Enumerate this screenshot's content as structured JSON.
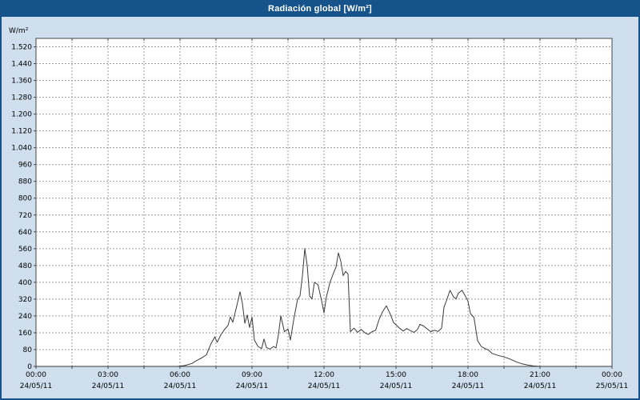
{
  "window": {
    "title": "Radiación global [W/m²]"
  },
  "colors": {
    "titlebar_bg": "#15538a",
    "window_bg": "#cfdfee",
    "plot_bg": "#ffffff",
    "plot_border": "#444444",
    "grid_color": "#9b9b9b",
    "line_color": "#3a3a3a",
    "text_color": "#000000"
  },
  "chart_data": {
    "type": "line",
    "title": "Radiación global [W/m²]",
    "ylabel": "W/m²",
    "xlabel": "",
    "grid": true,
    "legend": "none",
    "ylim": [
      0,
      1560
    ],
    "y_tick_step": 80,
    "y_tick_labels": [
      "0",
      "80",
      "160",
      "240",
      "320",
      "400",
      "480",
      "560",
      "640",
      "720",
      "800",
      "880",
      "960",
      "1.040",
      "1.120",
      "1.200",
      "1.280",
      "1.360",
      "1.440",
      "1.520"
    ],
    "x_hours": [
      0,
      24
    ],
    "x_grid_step_hours": 1.5,
    "x_tick_hours": [
      0,
      3,
      6,
      9,
      12,
      15,
      18,
      21,
      24
    ],
    "x_tick_times": [
      "00:00",
      "03:00",
      "06:00",
      "09:00",
      "12:00",
      "15:00",
      "18:00",
      "21:00",
      "00:00"
    ],
    "x_tick_dates": [
      "24/05/11",
      "24/05/11",
      "24/05/11",
      "24/05/11",
      "24/05/11",
      "24/05/11",
      "24/05/11",
      "24/05/11",
      "25/05/11"
    ],
    "series": [
      {
        "name": "Radiación global",
        "points": [
          [
            0,
            0
          ],
          [
            5.9,
            0
          ],
          [
            6.2,
            4
          ],
          [
            6.5,
            14
          ],
          [
            6.7,
            28
          ],
          [
            6.9,
            40
          ],
          [
            7.1,
            55
          ],
          [
            7.3,
            110
          ],
          [
            7.45,
            140
          ],
          [
            7.55,
            115
          ],
          [
            7.7,
            150
          ],
          [
            7.85,
            175
          ],
          [
            8.0,
            195
          ],
          [
            8.1,
            235
          ],
          [
            8.2,
            210
          ],
          [
            8.35,
            280
          ],
          [
            8.5,
            355
          ],
          [
            8.6,
            300
          ],
          [
            8.7,
            205
          ],
          [
            8.8,
            245
          ],
          [
            8.9,
            185
          ],
          [
            9.0,
            235
          ],
          [
            9.1,
            125
          ],
          [
            9.25,
            95
          ],
          [
            9.4,
            85
          ],
          [
            9.5,
            130
          ],
          [
            9.6,
            90
          ],
          [
            9.75,
            82
          ],
          [
            9.9,
            95
          ],
          [
            10.0,
            88
          ],
          [
            10.1,
            150
          ],
          [
            10.2,
            240
          ],
          [
            10.35,
            165
          ],
          [
            10.5,
            178
          ],
          [
            10.6,
            125
          ],
          [
            10.75,
            230
          ],
          [
            10.9,
            320
          ],
          [
            11.0,
            335
          ],
          [
            11.1,
            430
          ],
          [
            11.2,
            560
          ],
          [
            11.3,
            480
          ],
          [
            11.4,
            335
          ],
          [
            11.5,
            322
          ],
          [
            11.6,
            400
          ],
          [
            11.75,
            388
          ],
          [
            11.9,
            312
          ],
          [
            12.0,
            255
          ],
          [
            12.1,
            330
          ],
          [
            12.25,
            400
          ],
          [
            12.4,
            445
          ],
          [
            12.5,
            472
          ],
          [
            12.6,
            540
          ],
          [
            12.7,
            500
          ],
          [
            12.8,
            432
          ],
          [
            12.9,
            452
          ],
          [
            13.0,
            440
          ],
          [
            13.1,
            165
          ],
          [
            13.25,
            182
          ],
          [
            13.4,
            162
          ],
          [
            13.55,
            176
          ],
          [
            13.7,
            160
          ],
          [
            13.85,
            152
          ],
          [
            14.0,
            165
          ],
          [
            14.15,
            172
          ],
          [
            14.3,
            225
          ],
          [
            14.45,
            262
          ],
          [
            14.6,
            288
          ],
          [
            14.75,
            252
          ],
          [
            14.9,
            208
          ],
          [
            15.0,
            198
          ],
          [
            15.15,
            182
          ],
          [
            15.3,
            168
          ],
          [
            15.45,
            180
          ],
          [
            15.6,
            170
          ],
          [
            15.75,
            162
          ],
          [
            15.9,
            176
          ],
          [
            16.0,
            200
          ],
          [
            16.15,
            192
          ],
          [
            16.3,
            178
          ],
          [
            16.45,
            165
          ],
          [
            16.6,
            172
          ],
          [
            16.75,
            166
          ],
          [
            16.9,
            182
          ],
          [
            17.0,
            282
          ],
          [
            17.1,
            312
          ],
          [
            17.25,
            362
          ],
          [
            17.4,
            330
          ],
          [
            17.5,
            322
          ],
          [
            17.6,
            348
          ],
          [
            17.75,
            362
          ],
          [
            17.9,
            332
          ],
          [
            18.0,
            310
          ],
          [
            18.1,
            252
          ],
          [
            18.25,
            232
          ],
          [
            18.4,
            122
          ],
          [
            18.55,
            95
          ],
          [
            18.7,
            85
          ],
          [
            18.85,
            78
          ],
          [
            19.0,
            62
          ],
          [
            19.25,
            52
          ],
          [
            19.5,
            45
          ],
          [
            19.75,
            35
          ],
          [
            20.0,
            22
          ],
          [
            20.25,
            12
          ],
          [
            20.5,
            6
          ],
          [
            20.75,
            2
          ],
          [
            21.0,
            0
          ],
          [
            24,
            0
          ]
        ]
      }
    ]
  }
}
